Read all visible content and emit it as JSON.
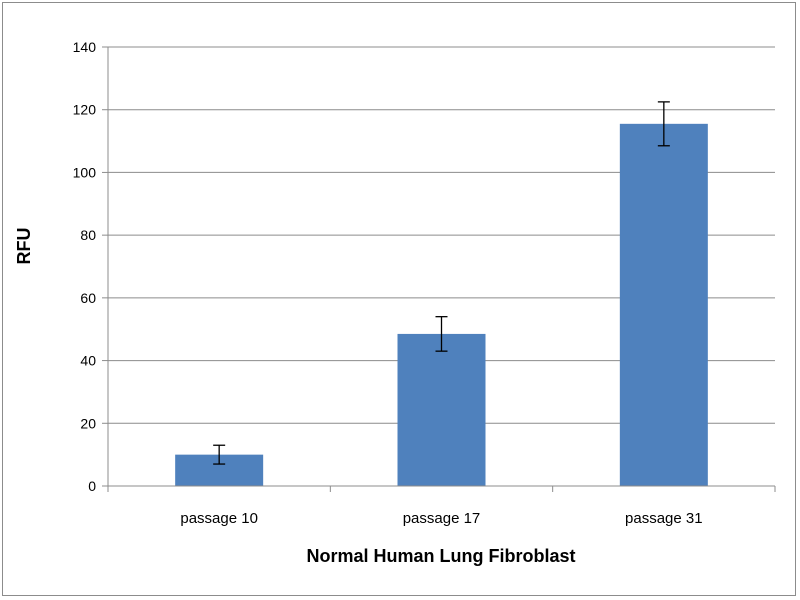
{
  "chart_data": {
    "type": "bar",
    "categories": [
      "passage 10",
      "passage 17",
      "passage 31"
    ],
    "values": [
      10,
      48.5,
      115.5
    ],
    "errors": [
      3,
      5.5,
      7
    ],
    "xlabel": "Normal Human Lung Fibroblast",
    "ylabel": "RFU",
    "ylim": [
      0,
      140
    ],
    "yticks": [
      0,
      20,
      40,
      60,
      80,
      100,
      120,
      140
    ],
    "ytick_labels": [
      "0",
      "20",
      "40",
      "60",
      "80",
      "100",
      "120",
      "140"
    ],
    "grid": true,
    "legend": "none",
    "colors": {
      "bar": "#4f81bd",
      "grid": "#8c8c8c",
      "axis": "#8c8c8c",
      "error": "#000000"
    }
  }
}
